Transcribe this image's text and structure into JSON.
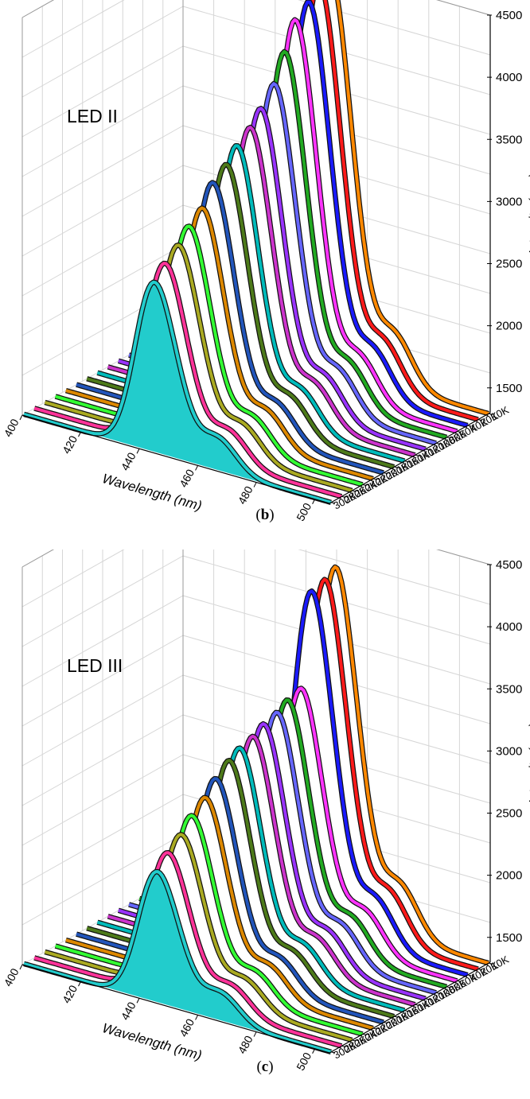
{
  "panels": [
    {
      "caption_open": "(",
      "caption_letter": "b",
      "caption_close": ")",
      "chart_data": {
        "type": "3d-waterfall",
        "title": "LED II",
        "xlabel": "Wavelength (nm)",
        "ylabel": "Intensity (a.u.)",
        "x_ticks": [
          "400",
          "420",
          "440",
          "460",
          "480",
          "500"
        ],
        "xlim": [
          400,
          505
        ],
        "y_ticks": [
          "1500",
          "2000",
          "2500",
          "3000",
          "3500",
          "4000",
          "4500"
        ],
        "ylim": [
          1300,
          4500
        ],
        "series_labels": [
          "10K",
          "20K",
          "40K",
          "60K",
          "80K",
          "100K",
          "120K",
          "140K",
          "160K",
          "180K",
          "200K",
          "220K",
          "240K",
          "260K",
          "280K",
          "300K"
        ],
        "peak_wavelength": [
          450,
          450,
          450,
          449,
          449,
          449,
          448,
          448,
          447,
          447,
          446,
          446,
          445,
          445,
          444,
          444
        ],
        "peak_intensity": [
          4350,
          4300,
          4200,
          4100,
          3900,
          3700,
          3550,
          3450,
          3350,
          3250,
          3150,
          3000,
          2900,
          2800,
          2700,
          2600
        ],
        "shoulder_intensity": [
          2100,
          2080,
          2050,
          2020,
          2000,
          1980,
          1960,
          1940,
          1920,
          1900,
          1880,
          1860,
          1840,
          1820,
          1800,
          1780
        ],
        "colors": [
          "#ff8800",
          "#ff1a1a",
          "#1a1aff",
          "#ff33ff",
          "#22aa22",
          "#6666ff",
          "#9933ff",
          "#cc33cc",
          "#00bbbb",
          "#4d7a1a",
          "#2255bb",
          "#dd8800",
          "#33ff33",
          "#aaaa22",
          "#ff3399",
          "#22cccc"
        ]
      }
    },
    {
      "caption_open": "(",
      "caption_letter": "c",
      "caption_close": ")",
      "chart_data": {
        "type": "3d-waterfall",
        "title": "LED III",
        "xlabel": "Wavelength (nm)",
        "ylabel": "Intensity (a.u.)",
        "x_ticks": [
          "400",
          "420",
          "440",
          "460",
          "480",
          "500"
        ],
        "xlim": [
          400,
          505
        ],
        "y_ticks": [
          "1500",
          "2000",
          "2500",
          "3000",
          "3500",
          "4000",
          "4500"
        ],
        "ylim": [
          1300,
          4500
        ],
        "series_labels": [
          "10K",
          "20K",
          "40K",
          "60K",
          "80K",
          "100K",
          "120K",
          "140K",
          "160K",
          "180K",
          "200K",
          "220K",
          "240K",
          "260K",
          "280K",
          "300K"
        ],
        "peak_wavelength": [
          452,
          452,
          451,
          451,
          450,
          450,
          449,
          449,
          448,
          448,
          447,
          447,
          446,
          446,
          445,
          445
        ],
        "peak_intensity": [
          4000,
          3950,
          3900,
          3200,
          3150,
          3100,
          3050,
          3000,
          2950,
          2900,
          2800,
          2700,
          2600,
          2500,
          2400,
          2300
        ],
        "shoulder_intensity": [
          2100,
          2080,
          2050,
          1950,
          1930,
          1910,
          1890,
          1870,
          1850,
          1830,
          1810,
          1790,
          1770,
          1750,
          1730,
          1710
        ],
        "colors": [
          "#ff8800",
          "#ff1a1a",
          "#1a1aff",
          "#ff33ff",
          "#22aa22",
          "#6666ff",
          "#9933ff",
          "#cc33cc",
          "#00bbbb",
          "#4d7a1a",
          "#2255bb",
          "#dd8800",
          "#33ff33",
          "#aaaa22",
          "#ff3399",
          "#22cccc"
        ]
      }
    }
  ]
}
